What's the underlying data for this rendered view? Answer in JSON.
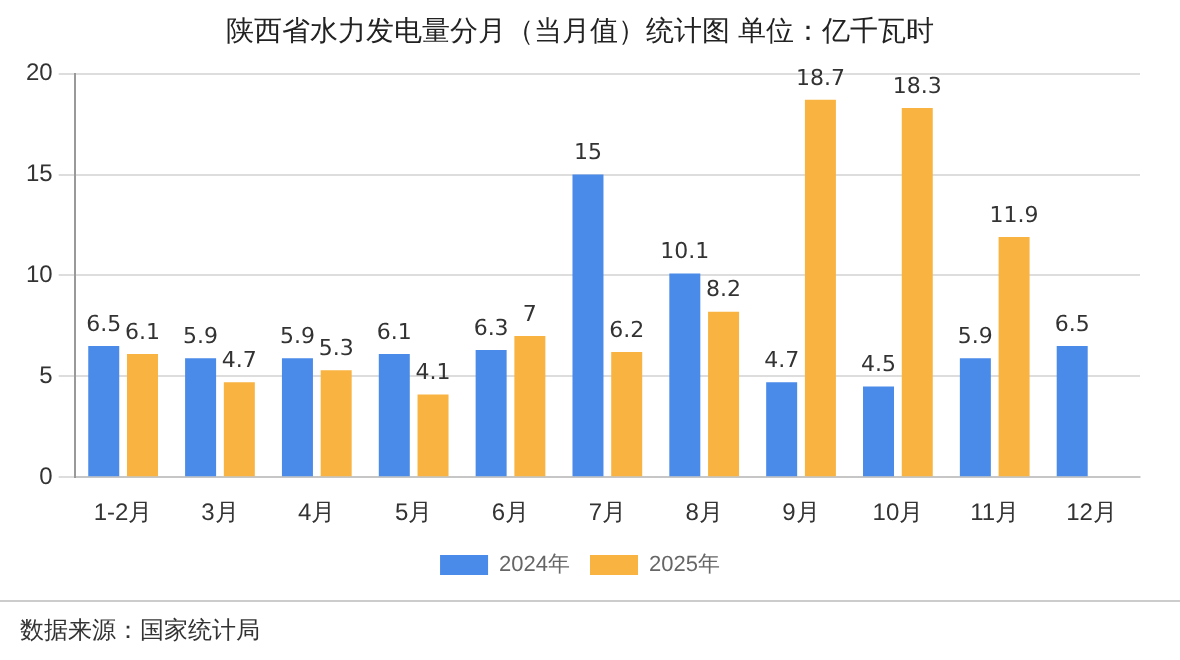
{
  "chart_data": {
    "type": "bar",
    "title": "陕西省水力发电量分月（当月值）统计图 单位：亿千瓦时",
    "categories": [
      "1-2月",
      "3月",
      "4月",
      "5月",
      "6月",
      "7月",
      "8月",
      "9月",
      "10月",
      "11月",
      "12月"
    ],
    "series": [
      {
        "name": "2024年",
        "color": "#4a8ae8",
        "values": [
          6.5,
          5.9,
          5.9,
          6.1,
          6.3,
          15,
          10.1,
          4.7,
          4.5,
          5.9,
          6.5
        ]
      },
      {
        "name": "2025年",
        "color": "#f9b340",
        "values": [
          6.1,
          4.7,
          5.3,
          4.1,
          7,
          6.2,
          8.2,
          18.7,
          18.3,
          11.9,
          null
        ]
      }
    ],
    "ylim": [
      0,
      20
    ],
    "yticks": [
      0,
      5,
      10,
      15,
      20
    ],
    "grid": "y",
    "legend": "bottom",
    "data_labels": true,
    "annotations": [
      "数据来源：国家统计局"
    ]
  }
}
